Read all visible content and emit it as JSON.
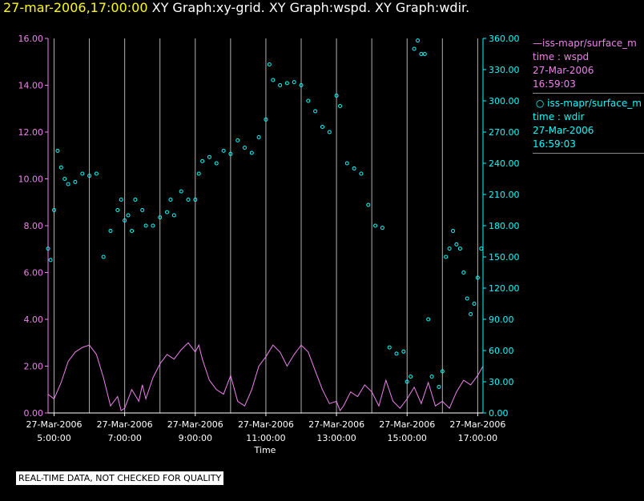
{
  "header": {
    "timestamp": "27-mar-2006,17:00:00",
    "graphs": "XY Graph:xy-grid.  XY Graph:wspd.  XY Graph:wdir."
  },
  "colors": {
    "background": "#000000",
    "wspd": "#ee82ee",
    "wdir": "#00ffff",
    "axis": "#c0c0c0",
    "timestamp": "#ffff00"
  },
  "legend": {
    "wspd": {
      "series": "iss-mapr/surface_m",
      "label": "time : wspd",
      "date": "27-Mar-2006",
      "time": "16:59:03"
    },
    "wdir": {
      "series": "iss-mapr/surface_m",
      "label": "time : wdir",
      "date": "27-Mar-2006",
      "time": "16:59:03"
    }
  },
  "footer": {
    "qc_note": "REAL-TIME DATA, NOT CHECKED FOR QUALITY"
  },
  "chart_data": {
    "type": "scatter",
    "xlabel": "Time",
    "x_unit": "hours",
    "xlim": [
      4.83,
      17.15
    ],
    "ylim_left": [
      0,
      16
    ],
    "ylim_right": [
      0,
      360
    ],
    "yticks_left": [
      "0.00",
      "2.00",
      "4.00",
      "6.00",
      "8.00",
      "10.00",
      "12.00",
      "14.00",
      "16.00"
    ],
    "yticks_right": [
      "0.00",
      "30.00",
      "60.00",
      "90.00",
      "120.00",
      "150.00",
      "180.00",
      "210.00",
      "240.00",
      "270.00",
      "300.00",
      "330.00",
      "360.00"
    ],
    "xticks": [
      {
        "hour": 5,
        "date": "27-Mar-2006",
        "time": "5:00:00"
      },
      {
        "hour": 7,
        "date": "27-Mar-2006",
        "time": "7:00:00"
      },
      {
        "hour": 9,
        "date": "27-Mar-2006",
        "time": "9:00:00"
      },
      {
        "hour": 11,
        "date": "27-Mar-2006",
        "time": "11:00:00"
      },
      {
        "hour": 13,
        "date": "27-Mar-2006",
        "time": "13:00:00"
      },
      {
        "hour": 15,
        "date": "27-Mar-2006",
        "time": "15:00:00"
      },
      {
        "hour": 17,
        "date": "27-Mar-2006",
        "time": "17:00:00"
      }
    ],
    "grid_hours": [
      6,
      8,
      10,
      12,
      14,
      16
    ],
    "series": [
      {
        "name": "wspd",
        "kind": "line",
        "axis": "left",
        "x": [
          4.83,
          5.0,
          5.2,
          5.4,
          5.6,
          5.8,
          6.0,
          6.2,
          6.4,
          6.6,
          6.8,
          6.9,
          7.0,
          7.2,
          7.4,
          7.5,
          7.6,
          7.8,
          8.0,
          8.2,
          8.4,
          8.6,
          8.8,
          9.0,
          9.1,
          9.2,
          9.4,
          9.6,
          9.8,
          10.0,
          10.2,
          10.4,
          10.6,
          10.8,
          11.0,
          11.2,
          11.4,
          11.6,
          11.8,
          12.0,
          12.2,
          12.4,
          12.6,
          12.8,
          13.0,
          13.1,
          13.2,
          13.4,
          13.6,
          13.8,
          14.0,
          14.2,
          14.4,
          14.6,
          14.8,
          15.0,
          15.2,
          15.4,
          15.6,
          15.8,
          16.0,
          16.2,
          16.4,
          16.6,
          16.8,
          17.0,
          17.15
        ],
        "y": [
          0.8,
          0.6,
          1.3,
          2.2,
          2.6,
          2.8,
          2.9,
          2.5,
          1.5,
          0.3,
          0.7,
          0.1,
          0.2,
          1.0,
          0.5,
          1.2,
          0.6,
          1.5,
          2.1,
          2.5,
          2.3,
          2.7,
          3.0,
          2.6,
          2.9,
          2.3,
          1.4,
          1.0,
          0.8,
          1.6,
          0.5,
          0.3,
          1.0,
          2.0,
          2.4,
          2.9,
          2.6,
          2.0,
          2.5,
          2.9,
          2.6,
          1.8,
          1.0,
          0.4,
          0.5,
          0.1,
          0.3,
          0.9,
          0.7,
          1.2,
          0.9,
          0.3,
          1.4,
          0.5,
          0.2,
          0.6,
          1.1,
          0.4,
          1.3,
          0.3,
          0.5,
          0.2,
          0.9,
          1.4,
          1.2,
          1.6,
          2.0
        ]
      },
      {
        "name": "wdir",
        "kind": "points",
        "axis": "right",
        "x": [
          4.83,
          4.9,
          5.0,
          5.1,
          5.2,
          5.3,
          5.4,
          5.6,
          5.8,
          6.0,
          6.2,
          6.4,
          6.6,
          6.8,
          6.9,
          7.0,
          7.1,
          7.2,
          7.3,
          7.5,
          7.6,
          7.8,
          8.0,
          8.2,
          8.3,
          8.4,
          8.6,
          8.8,
          9.0,
          9.1,
          9.2,
          9.4,
          9.6,
          9.8,
          10.0,
          10.2,
          10.4,
          10.6,
          10.8,
          11.0,
          11.1,
          11.2,
          11.4,
          11.6,
          11.8,
          12.0,
          12.2,
          12.4,
          12.6,
          12.8,
          13.0,
          13.1,
          13.3,
          13.5,
          13.7,
          13.9,
          14.1,
          14.3,
          14.5,
          14.7,
          14.9,
          15.0,
          15.1,
          15.2,
          15.3,
          15.4,
          15.5,
          15.6,
          15.7,
          15.9,
          16.0,
          16.1,
          16.2,
          16.3,
          16.4,
          16.5,
          16.6,
          16.7,
          16.8,
          16.9,
          17.0,
          17.1
        ],
        "y": [
          158,
          147,
          195,
          252,
          236,
          225,
          220,
          222,
          230,
          228,
          230,
          150,
          175,
          195,
          205,
          185,
          190,
          175,
          205,
          195,
          180,
          180,
          188,
          193,
          205,
          190,
          213,
          205,
          205,
          230,
          242,
          246,
          240,
          252,
          249,
          262,
          255,
          250,
          265,
          282,
          335,
          320,
          315,
          317,
          318,
          315,
          300,
          290,
          275,
          270,
          305,
          295,
          240,
          235,
          230,
          200,
          180,
          178,
          63,
          57,
          59,
          30,
          35,
          350,
          358,
          345,
          345,
          90,
          35,
          25,
          40,
          150,
          158,
          175,
          162,
          158,
          135,
          110,
          95,
          105,
          130,
          158
        ]
      }
    ]
  }
}
